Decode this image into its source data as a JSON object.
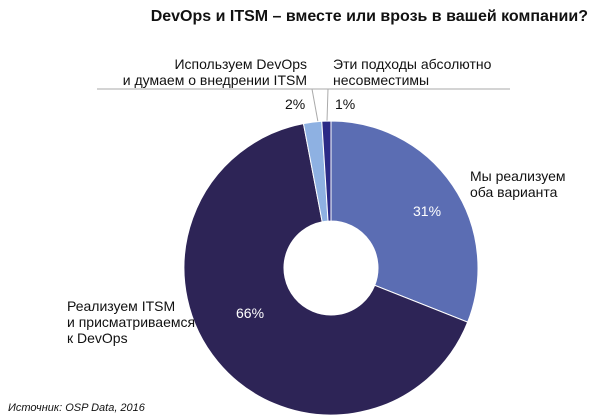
{
  "chart_data": {
    "type": "pie",
    "donut": true,
    "title": "DevOps и ITSM – вместе или врозь в вашей компании?",
    "slices": [
      {
        "label": "Мы реализуем оба варианта",
        "label_lines": [
          "Мы реализуем",
          "оба варианта"
        ],
        "value": 31,
        "value_label": "31%",
        "color": "#5b6db3"
      },
      {
        "label": "Реализуем ITSM и присматриваемся к DevOps",
        "label_lines": [
          "Реализуем ITSM",
          "и присматриваемся",
          "к DevOps"
        ],
        "value": 66,
        "value_label": "66%",
        "color": "#2d2456"
      },
      {
        "label": "Используем DevOps и думаем о внедрении ITSM",
        "label_lines": [
          "Используем DevOps",
          "и думаем о внедрении ITSM"
        ],
        "value": 2,
        "value_label": "2%",
        "color": "#8eb1e2"
      },
      {
        "label": "Эти подходы абсолютно несовместимы",
        "label_lines": [
          "Эти подходы абсолютно",
          "несовместимы"
        ],
        "value": 1,
        "value_label": "1%",
        "color": "#2b2a86"
      }
    ],
    "source": "Источник: OSP Data, 2016"
  }
}
